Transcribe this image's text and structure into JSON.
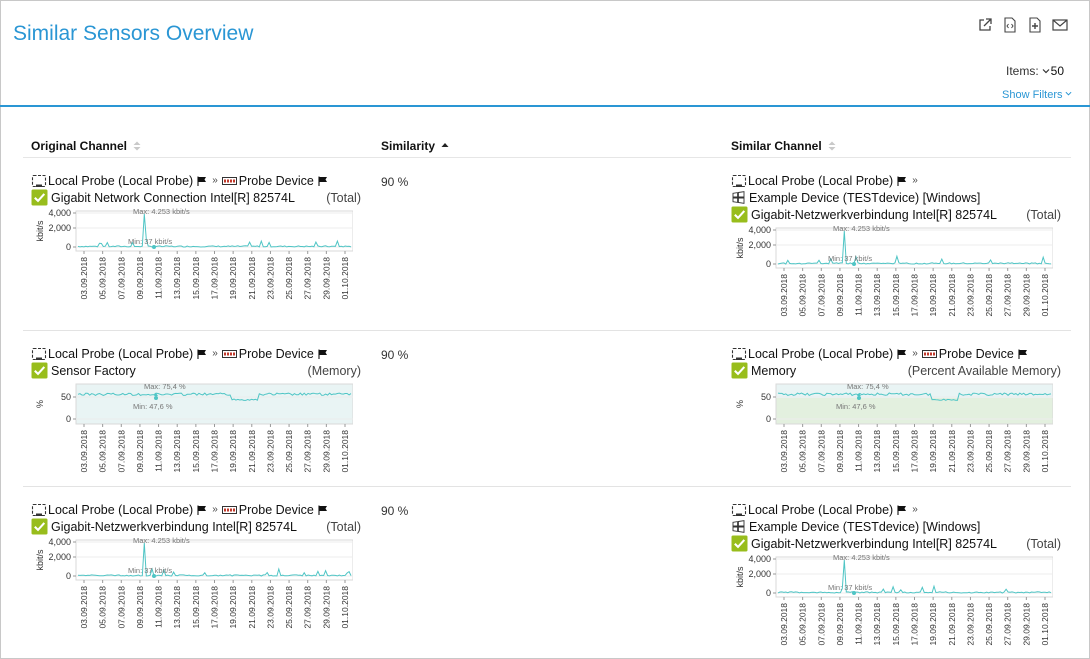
{
  "page": {
    "title": "Similar Sensors Overview",
    "items_label": "Items:",
    "items_value": "50",
    "show_filters": "Show Filters"
  },
  "columns": {
    "original": "Original Channel",
    "similarity": "Similarity",
    "similar": "Similar Channel"
  },
  "rows": [
    {
      "similarity": "90 %",
      "original": {
        "probe": "Local Probe (Local Probe)",
        "device": "Probe Device",
        "sensor": "Gigabit Network Connection Intel[R] 82574L",
        "channel": "(Total)",
        "chart": {
          "ylabel": "kbit/s",
          "yticks": [
            "4,000",
            "2,000",
            "0"
          ],
          "max": "Max: 4.253 kbit/s",
          "min": "Min: 37 kbit/s",
          "kind": "traffic"
        }
      },
      "similar": {
        "probe": "Local Probe (Local Probe)",
        "device": "Example Device (TESTdevice) [Windows]",
        "sensor": "Gigabit-Netzwerkverbindung Intel[R] 82574L",
        "channel": "(Total)",
        "chart": {
          "ylabel": "kbit/s",
          "yticks": [
            "4,000",
            "2,000",
            "0"
          ],
          "max": "Max: 4.253 kbit/s",
          "min": "Min: 37 kbit/s",
          "kind": "traffic"
        }
      }
    },
    {
      "similarity": "90 %",
      "original": {
        "probe": "Local Probe (Local Probe)",
        "device": "Probe Device",
        "sensor": "Sensor Factory",
        "channel": "(Memory)",
        "chart": {
          "ylabel": "%",
          "yticks": [
            "50",
            "0"
          ],
          "max": "Max: 75,4 %",
          "min": "Min: 47,6 %",
          "kind": "memory"
        }
      },
      "similar": {
        "probe": "Local Probe (Local Probe)",
        "device": "Probe Device",
        "sensor": "Memory",
        "channel": "(Percent Available Memory)",
        "chart": {
          "ylabel": "%",
          "yticks": [
            "50",
            "0"
          ],
          "max": "Max: 75,4 %",
          "min": "Min: 47,6 %",
          "kind": "memory2"
        }
      }
    },
    {
      "similarity": "90 %",
      "original": {
        "probe": "Local Probe (Local Probe)",
        "device": "Probe Device",
        "sensor": "Gigabit-Netzwerkverbindung Intel[R] 82574L",
        "channel": "(Total)",
        "chart": {
          "ylabel": "kbit/s",
          "yticks": [
            "4,000",
            "2,000",
            "0"
          ],
          "max": "Max: 4.253 kbit/s",
          "min": "Min: 37 kbit/s",
          "kind": "traffic"
        }
      },
      "similar": {
        "probe": "Local Probe (Local Probe)",
        "device": "Example Device (TESTdevice) [Windows]",
        "sensor": "Gigabit-Netzwerkverbindung Intel[R] 82574L",
        "channel": "(Total)",
        "chart": {
          "ylabel": "kbit/s",
          "yticks": [
            "4,000",
            "2,000",
            "0"
          ],
          "max": "Max: 4.253 kbit/s",
          "min": "Min: 37 kbit/s",
          "kind": "traffic"
        }
      }
    }
  ],
  "dates": [
    "03.09.2018",
    "05.09.2018",
    "07.09.2018",
    "09.09.2018",
    "11.09.2018",
    "13.09.2018",
    "15.09.2018",
    "17.09.2018",
    "19.09.2018",
    "21.09.2018",
    "23.09.2018",
    "25.09.2018",
    "27.09.2018",
    "29.09.2018",
    "01.10.2018"
  ],
  "colors": {
    "accent": "#2a96d4",
    "line": "#4fc5c5",
    "check": "#98bd1c",
    "memory_fill": "#e9f4f4",
    "memory_fill2": "#e3f0df"
  },
  "icons": {
    "open": "external-link-icon",
    "embed": "embed-code-icon",
    "add": "add-to-library-icon",
    "mail": "mail-icon",
    "probe": "probe-icon",
    "device": "device-icon",
    "windows": "windows-logo-icon",
    "flag": "flag-icon",
    "check": "checkbox-icon"
  }
}
